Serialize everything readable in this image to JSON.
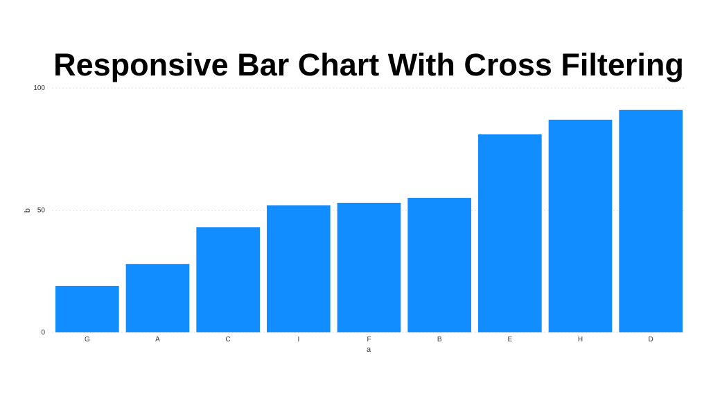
{
  "chart_data": {
    "type": "bar",
    "title": "Responsive Bar Chart With Cross Filtering",
    "xlabel": "a",
    "ylabel": "b",
    "categories": [
      "G",
      "A",
      "C",
      "I",
      "F",
      "B",
      "E",
      "H",
      "D"
    ],
    "values": [
      19,
      28,
      43,
      52,
      53,
      55,
      81,
      87,
      91
    ],
    "ylim": [
      0,
      100
    ],
    "yticks": [
      0,
      50,
      100
    ],
    "grid": true,
    "bar_color": "#128dff",
    "grid_color": "#dddddd"
  }
}
